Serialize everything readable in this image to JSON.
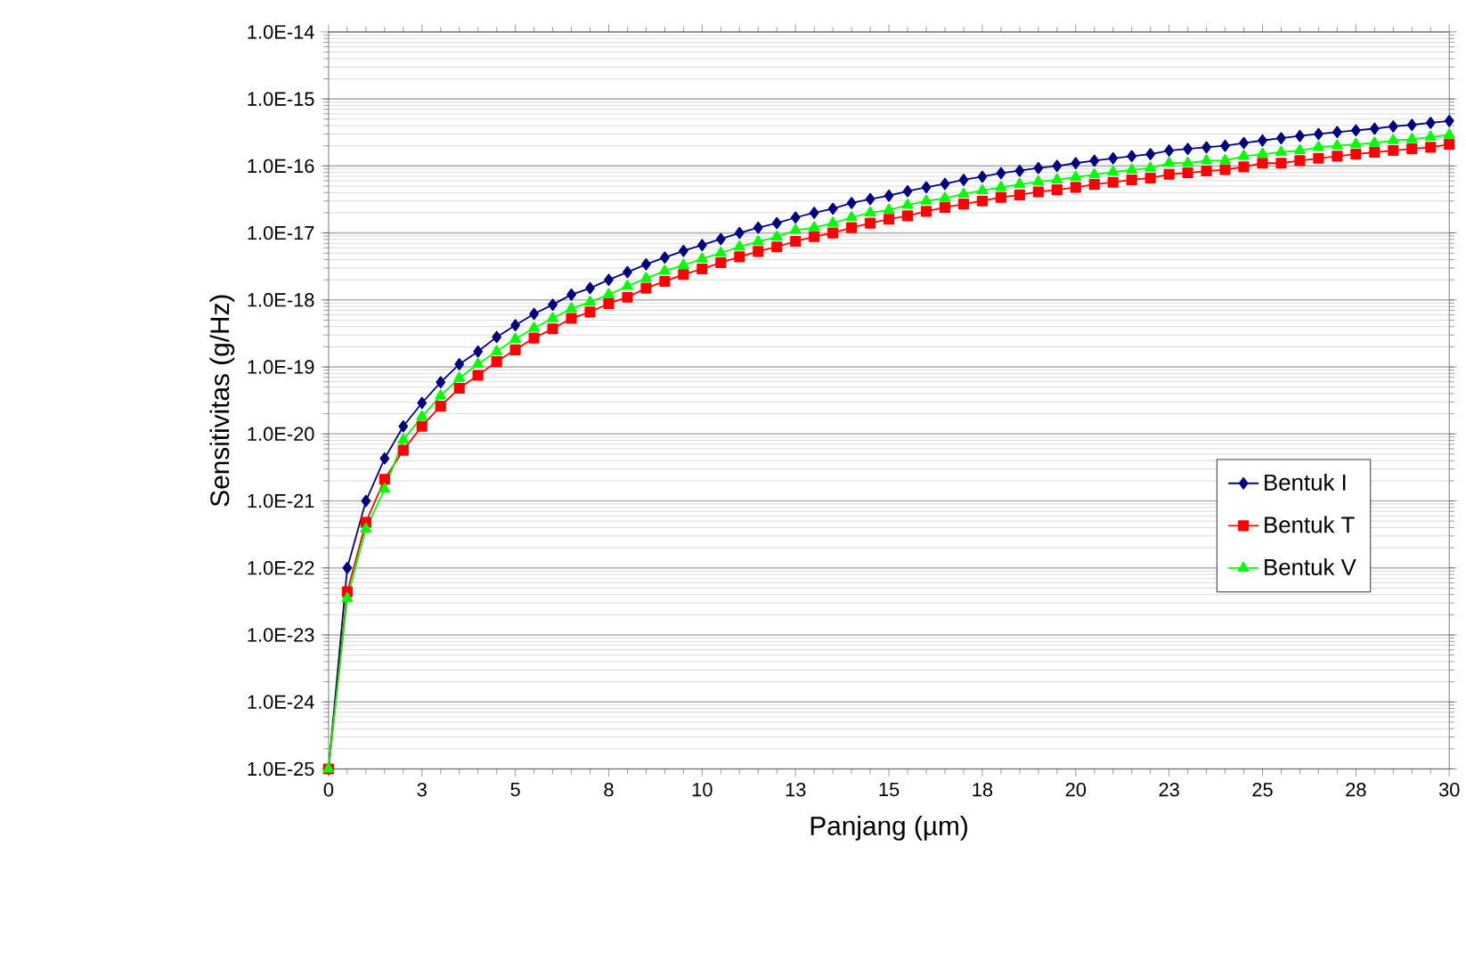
{
  "chart_data": {
    "type": "line",
    "xlabel": "Panjang (µm)",
    "ylabel": "Sensitivitas (g/Hz)",
    "log": "y",
    "grid": "y",
    "legend": "right",
    "x": [
      0,
      0.5,
      1,
      1.5,
      2,
      2.5,
      3,
      3.5,
      4,
      4.5,
      5,
      5.5,
      6,
      6.5,
      7,
      7.5,
      8,
      8.5,
      9,
      9.5,
      10,
      10.5,
      11,
      11.5,
      12,
      12.5,
      13,
      13.5,
      14,
      14.5,
      15,
      15.5,
      16,
      16.5,
      17,
      17.5,
      18,
      18.5,
      19,
      19.5,
      20,
      20.5,
      21,
      21.5,
      22,
      22.5,
      23,
      23.5,
      24,
      24.5,
      25,
      25.5,
      26,
      26.5,
      27,
      27.5,
      28,
      28.5,
      29,
      29.5,
      30
    ],
    "xlim": [
      0,
      30
    ],
    "ylim": [
      1e-25,
      1e-14
    ],
    "xticks": [
      0,
      {
        "value": 2.5,
        "label": "3"
      },
      5,
      {
        "value": 7.5,
        "label": "8"
      },
      10,
      {
        "value": 12.5,
        "label": "13"
      },
      15,
      {
        "value": 17.5,
        "label": "18"
      },
      20,
      {
        "value": 22.5,
        "label": "23"
      },
      25,
      {
        "value": 27.5,
        "label": "28"
      },
      30
    ],
    "yticks": [
      {
        "value": 1e-25,
        "label": "1.0E-25"
      },
      {
        "value": 1e-24,
        "label": "1.0E-24"
      },
      {
        "value": 1e-23,
        "label": "1.0E-23"
      },
      {
        "value": 1e-22,
        "label": "1.0E-22"
      },
      {
        "value": 1e-21,
        "label": "1.0E-21"
      },
      {
        "value": 1e-20,
        "label": "1.0E-20"
      },
      {
        "value": 1e-19,
        "label": "1.0E-19"
      },
      {
        "value": 1e-18,
        "label": "1.0E-18"
      },
      {
        "value": 1e-17,
        "label": "1.0E-17"
      },
      {
        "value": 1e-16,
        "label": "1.0E-16"
      },
      {
        "value": 1e-15,
        "label": "1.0E-15"
      },
      {
        "value": 1e-14,
        "label": "1.0E-14"
      }
    ],
    "series": [
      {
        "name": "Bentuk I",
        "color": "#000080",
        "marker": "diamond",
        "values": [
          1e-25,
          1e-22,
          1e-21,
          4.3e-21,
          1.3e-20,
          2.9e-20,
          5.9e-20,
          1.1e-19,
          1.7e-19,
          2.8e-19,
          4.2e-19,
          6.2e-19,
          8.5e-19,
          1.2e-18,
          1.5e-18,
          2e-18,
          2.6e-18,
          3.4e-18,
          4.3e-18,
          5.4e-18,
          6.6e-18,
          8.1e-18,
          1e-17,
          1.2e-17,
          1.4e-17,
          1.7e-17,
          2e-17,
          2.3e-17,
          2.8e-17,
          3.2e-17,
          3.6e-17,
          4.2e-17,
          4.8e-17,
          5.4e-17,
          6.2e-17,
          6.9e-17,
          7.8e-17,
          8.5e-17,
          9.3e-17,
          1e-16,
          1.1e-16,
          1.2e-16,
          1.3e-16,
          1.4e-16,
          1.5e-16,
          1.7e-16,
          1.8e-16,
          1.9e-16,
          2e-16,
          2.2e-16,
          2.4e-16,
          2.6e-16,
          2.8e-16,
          3e-16,
          3.2e-16,
          3.4e-16,
          3.6e-16,
          3.9e-16,
          4.1e-16,
          4.4e-16,
          4.7e-16
        ]
      },
      {
        "name": "Bentuk T",
        "color": "#ff0000",
        "marker": "square",
        "values": [
          1e-25,
          4.4e-23,
          4.8e-22,
          2.1e-21,
          5.7e-21,
          1.3e-20,
          2.6e-20,
          4.8e-20,
          7.5e-20,
          1.2e-19,
          1.8e-19,
          2.7e-19,
          3.7e-19,
          5.3e-19,
          6.6e-19,
          8.8e-19,
          1.1e-18,
          1.5e-18,
          1.9e-18,
          2.4e-18,
          2.9e-18,
          3.6e-18,
          4.4e-18,
          5.3e-18,
          6.2e-18,
          7.5e-18,
          8.8e-18,
          1e-17,
          1.2e-17,
          1.4e-17,
          1.6e-17,
          1.8e-17,
          2.1e-17,
          2.4e-17,
          2.7e-17,
          3e-17,
          3.4e-17,
          3.7e-17,
          4.1e-17,
          4.4e-17,
          4.8e-17,
          5.3e-17,
          5.7e-17,
          6.2e-17,
          6.6e-17,
          7.5e-17,
          7.9e-17,
          8.4e-17,
          8.8e-17,
          9.7e-17,
          1.1e-16,
          1.1e-16,
          1.2e-16,
          1.3e-16,
          1.4e-16,
          1.5e-16,
          1.6e-16,
          1.7e-16,
          1.8e-16,
          1.9e-16,
          2.1e-16
        ]
      },
      {
        "name": "Bentuk V",
        "color": "#00ff00",
        "marker": "triangle",
        "values": [
          1e-25,
          3.5e-23,
          3.8e-22,
          1.5e-21,
          8.1e-21,
          1.8e-20,
          3.7e-20,
          6.8e-20,
          1.1e-19,
          1.7e-19,
          2.6e-19,
          3.8e-19,
          5.3e-19,
          7.4e-19,
          9.3e-19,
          1.2e-18,
          1.6e-18,
          2.1e-18,
          2.7e-18,
          3.3e-18,
          4.1e-18,
          5e-18,
          6.2e-18,
          7.4e-18,
          8.7e-18,
          1.1e-17,
          1.2e-17,
          1.4e-17,
          1.7e-17,
          2e-17,
          2.2e-17,
          2.6e-17,
          3e-17,
          3.3e-17,
          3.8e-17,
          4.3e-17,
          4.8e-17,
          5.3e-17,
          5.8e-17,
          6.2e-17,
          6.8e-17,
          7.4e-17,
          8.1e-17,
          8.7e-17,
          9.3e-17,
          1.1e-16,
          1.1e-16,
          1.2e-16,
          1.2e-16,
          1.4e-16,
          1.5e-16,
          1.6e-16,
          1.7e-16,
          1.9e-16,
          2e-16,
          2.1e-16,
          2.2e-16,
          2.4e-16,
          2.5e-16,
          2.7e-16,
          2.9e-16
        ]
      }
    ]
  }
}
